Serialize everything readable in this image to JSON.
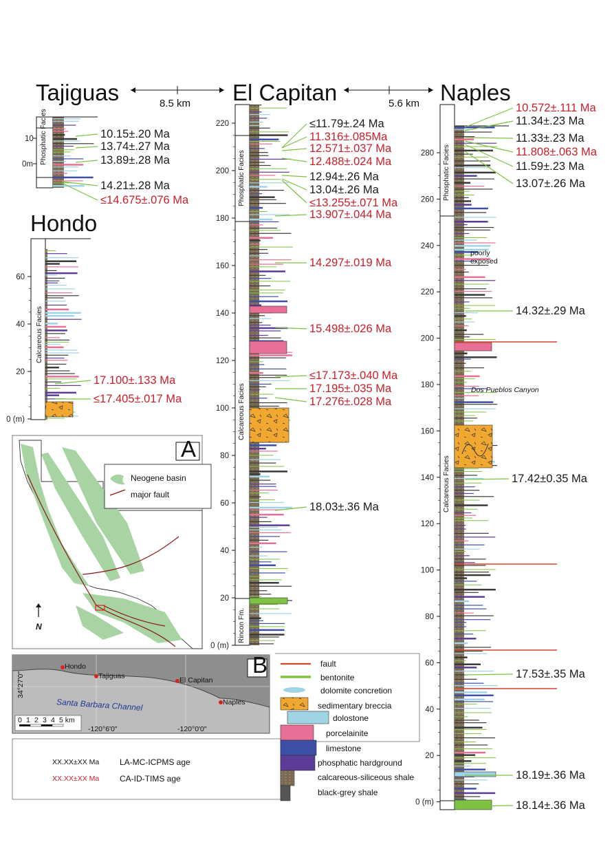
{
  "colors": {
    "laicp": "#1a1a1a",
    "tims": "#c8202a",
    "green": "#7dc242",
    "basin": "#a8d4a4",
    "fault": "#8b1a1a",
    "breccia": "#f0a830",
    "dolostone": "#9fd3e6",
    "porcelainite": "#e86f95",
    "limestone": "#3d4fa6",
    "phosphatic": "#5b3c96",
    "shale": "#7b6a52",
    "black": "#555555"
  },
  "columns": {
    "tajiguas": {
      "title": "Tajiguas",
      "facies": "Phosphatic Facies",
      "ticks": [
        "10",
        "0m"
      ],
      "ages": [
        {
          "text": "10.15±.20 Ma",
          "type": "laicp"
        },
        {
          "text": "13.74±.27 Ma",
          "type": "laicp"
        },
        {
          "text": "13.89±.28 Ma",
          "type": "laicp"
        },
        {
          "text": "14.21±.28 Ma",
          "type": "laicp"
        },
        {
          "text": "≤14.675±.076 Ma",
          "type": "tims"
        }
      ]
    },
    "hondo": {
      "title": "Hondo",
      "facies": "Calcareous Facies",
      "ticks": [
        "60",
        "40",
        "20",
        "0 (m)"
      ],
      "ages": [
        {
          "text": "17.100±.133 Ma",
          "type": "tims"
        },
        {
          "text": "≤17.405±.017 Ma",
          "type": "tims"
        }
      ]
    },
    "elcapitan": {
      "title": "El Capitan",
      "facies_top": "Phosphatic Facies",
      "facies_mid": "Calcareous Facies",
      "facies_bot": "Rincon Fm.",
      "ticks": [
        "220",
        "200",
        "180",
        "160",
        "140",
        "120",
        "100",
        "80",
        "60",
        "40",
        "20",
        "0 (m)"
      ],
      "ages": [
        {
          "text": "≤11.79±.24 Ma",
          "type": "laicp"
        },
        {
          "text": "11.316±.085Ma",
          "type": "tims"
        },
        {
          "text": "12.571±.037 Ma",
          "type": "tims"
        },
        {
          "text": "12.488±.024 Ma",
          "type": "tims"
        },
        {
          "text": "12.94±.26 Ma",
          "type": "laicp"
        },
        {
          "text": "13.04±.26 Ma",
          "type": "laicp"
        },
        {
          "text": "≤13.255±.071 Ma",
          "type": "tims"
        },
        {
          "text": "13.907±.044 Ma",
          "type": "tims"
        },
        {
          "text": "14.297±.019 Ma",
          "type": "tims"
        },
        {
          "text": "15.498±.026 Ma",
          "type": "tims"
        },
        {
          "text": "≤17.173±.040 Ma",
          "type": "tims"
        },
        {
          "text": "17.195±.035 Ma",
          "type": "tims"
        },
        {
          "text": "17.276±.028 Ma",
          "type": "tims"
        },
        {
          "text": "18.03±.36 Ma",
          "type": "laicp"
        }
      ]
    },
    "naples": {
      "title": "Naples",
      "facies_top": "Phosphatic Facies",
      "facies_mid": "Calcareous Facies",
      "ticks": [
        "280",
        "260",
        "240",
        "220",
        "200",
        "180",
        "160",
        "140",
        "120",
        "100",
        "80",
        "60",
        "40",
        "20",
        "0 (m)"
      ],
      "note": "poorly exposed",
      "canyon": "Dos Pueblos Canyon",
      "ages": [
        {
          "text": "10.572±.111 Ma",
          "type": "tims"
        },
        {
          "text": "11.34±.23 Ma",
          "type": "laicp"
        },
        {
          "text": "11.33±.23 Ma",
          "type": "laicp"
        },
        {
          "text": "11.808±.063 Ma",
          "type": "tims"
        },
        {
          "text": "11.59±.23 Ma",
          "type": "laicp"
        },
        {
          "text": "13.07±.26 Ma",
          "type": "laicp"
        },
        {
          "text": "14.32±.29 Ma",
          "type": "laicp"
        },
        {
          "text": "17.42±0.35 Ma",
          "type": "laicp"
        },
        {
          "text": "17.53±.35 Ma",
          "type": "laicp"
        },
        {
          "text": "18.19±.36 Ma",
          "type": "laicp"
        },
        {
          "text": "18.14±.36 Ma",
          "type": "laicp"
        }
      ]
    }
  },
  "distances": {
    "a": "8.5 km",
    "b": "5.6 km"
  },
  "mapA": {
    "label": "A",
    "legend_basin": "Neogene basin",
    "legend_fault": "major fault",
    "north": "N"
  },
  "mapB": {
    "label": "B",
    "places": [
      "Hondo",
      "Tajiguas",
      "El Capitan",
      "Naples"
    ],
    "channel": "Santa Barbara Channel",
    "lat": "34°27'0\"",
    "lon1": "-120°6'0\"",
    "lon2": "-120°0'0\"",
    "scale": [
      "0",
      "1",
      "2",
      "3",
      "4",
      "5 km"
    ]
  },
  "legend": {
    "items": [
      "fault",
      "bentonite",
      "dolomite concretion",
      "sedimentary breccia",
      "dolostone",
      "porcelainite",
      "limestone",
      "phosphatic hardground",
      "calcareous-siliceous shale",
      "black-grey shale"
    ],
    "age_sample": "XX.XX±XX Ma",
    "laicp_label": "LA-MC-ICPMS age",
    "tims_label": "CA-ID-TIMS age"
  }
}
